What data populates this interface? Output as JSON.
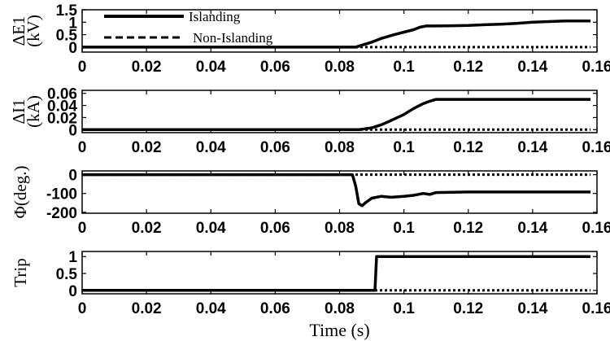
{
  "chart_data": [
    {
      "type": "line",
      "ylabel_top": "ΔE1",
      "ylabel_bottom": "(kV)",
      "xlim": [
        0,
        0.16
      ],
      "ylim": [
        -0.2,
        1.5
      ],
      "yticks": [
        0,
        0.5,
        1,
        1.5
      ],
      "ytick_labels": [
        "0",
        "0.5",
        "1",
        "1.5"
      ],
      "xticks": [
        0,
        0.02,
        0.04,
        0.06,
        0.08,
        0.1,
        0.12,
        0.14,
        0.16
      ],
      "xtick_labels": [
        "0",
        "0.02",
        "0.04",
        "0.06",
        "0.08",
        "0.1",
        "0.12",
        "0.14",
        "0.16"
      ],
      "legend": {
        "placement": "top-left",
        "entries": [
          "Islanding",
          "Non-Islanding"
        ]
      },
      "series": [
        {
          "name": "Islanding",
          "style": "solid",
          "x": [
            0,
            0.085,
            0.087,
            0.09,
            0.093,
            0.097,
            0.1,
            0.103,
            0.105,
            0.107,
            0.11,
            0.115,
            0.12,
            0.125,
            0.13,
            0.135,
            0.14,
            0.15,
            0.158
          ],
          "y": [
            0,
            0,
            0.08,
            0.2,
            0.35,
            0.5,
            0.6,
            0.7,
            0.8,
            0.85,
            0.85,
            0.86,
            0.87,
            0.9,
            0.92,
            0.95,
            1.0,
            1.05,
            1.05
          ]
        },
        {
          "name": "Non-Islanding",
          "style": "dotted",
          "x": [
            0,
            0.158
          ],
          "y": [
            0,
            0
          ]
        }
      ]
    },
    {
      "type": "line",
      "ylabel_top": "ΔI1",
      "ylabel_bottom": "(kA)",
      "xlim": [
        0,
        0.16
      ],
      "ylim": [
        -0.005,
        0.065
      ],
      "yticks": [
        0,
        0.02,
        0.04,
        0.06
      ],
      "ytick_labels": [
        "0",
        "0.02",
        "0.04",
        "0.06"
      ],
      "xticks": [
        0,
        0.02,
        0.04,
        0.06,
        0.08,
        0.1,
        0.12,
        0.14,
        0.16
      ],
      "xtick_labels": [
        "0",
        "0.02",
        "0.04",
        "0.06",
        "0.08",
        "0.1",
        "0.12",
        "0.14",
        "0.16"
      ],
      "series": [
        {
          "name": "Islanding",
          "style": "solid",
          "x": [
            0,
            0.086,
            0.09,
            0.093,
            0.096,
            0.1,
            0.103,
            0.106,
            0.108,
            0.11,
            0.13,
            0.158
          ],
          "y": [
            0,
            0,
            0.003,
            0.008,
            0.015,
            0.025,
            0.035,
            0.043,
            0.047,
            0.05,
            0.05,
            0.05
          ]
        },
        {
          "name": "Non-Islanding",
          "style": "dotted",
          "x": [
            0,
            0.158
          ],
          "y": [
            0,
            0
          ]
        }
      ]
    },
    {
      "type": "line",
      "ylabel_top": "Φ(deg.)",
      "ylabel_bottom": "",
      "xlim": [
        0,
        0.16
      ],
      "ylim": [
        -205,
        20
      ],
      "yticks": [
        0,
        -100,
        -200
      ],
      "ytick_labels": [
        "0",
        "-100",
        "-200"
      ],
      "xticks": [
        0,
        0.02,
        0.04,
        0.06,
        0.08,
        0.1,
        0.12,
        0.14,
        0.16
      ],
      "xtick_labels": [
        "0",
        "0.02",
        "0.04",
        "0.06",
        "0.08",
        "0.1",
        "0.12",
        "0.14",
        "0.16"
      ],
      "series": [
        {
          "name": "Islanding",
          "style": "solid",
          "x": [
            0,
            0.084,
            0.085,
            0.086,
            0.087,
            0.088,
            0.09,
            0.093,
            0.096,
            0.1,
            0.103,
            0.106,
            0.108,
            0.11,
            0.12,
            0.14,
            0.158
          ],
          "y": [
            0,
            0,
            -60,
            -155,
            -165,
            -150,
            -125,
            -115,
            -120,
            -115,
            -110,
            -100,
            -105,
            -95,
            -92,
            -92,
            -92
          ]
        },
        {
          "name": "Non-Islanding",
          "style": "dotted",
          "x": [
            0,
            0.158
          ],
          "y": [
            0,
            0
          ]
        }
      ]
    },
    {
      "type": "line",
      "ylabel_top": "Trip",
      "ylabel_bottom": "",
      "xlabel": "Time (s)",
      "xlim": [
        0,
        0.16
      ],
      "ylim": [
        -0.1,
        1.15
      ],
      "yticks": [
        0,
        0.5,
        1
      ],
      "ytick_labels": [
        "0",
        "0.5",
        "1"
      ],
      "xticks": [
        0,
        0.02,
        0.04,
        0.06,
        0.08,
        0.1,
        0.12,
        0.14,
        0.16
      ],
      "xtick_labels": [
        "0",
        "0.02",
        "0.04",
        "0.06",
        "0.08",
        "0.1",
        "0.12",
        "0.14",
        "0.16"
      ],
      "series": [
        {
          "name": "Islanding",
          "style": "solid",
          "x": [
            0,
            0.091,
            0.0915,
            0.158
          ],
          "y": [
            0,
            0,
            1,
            1
          ]
        },
        {
          "name": "Non-Islanding",
          "style": "dotted",
          "x": [
            0,
            0.158
          ],
          "y": [
            0,
            0
          ]
        }
      ]
    }
  ]
}
